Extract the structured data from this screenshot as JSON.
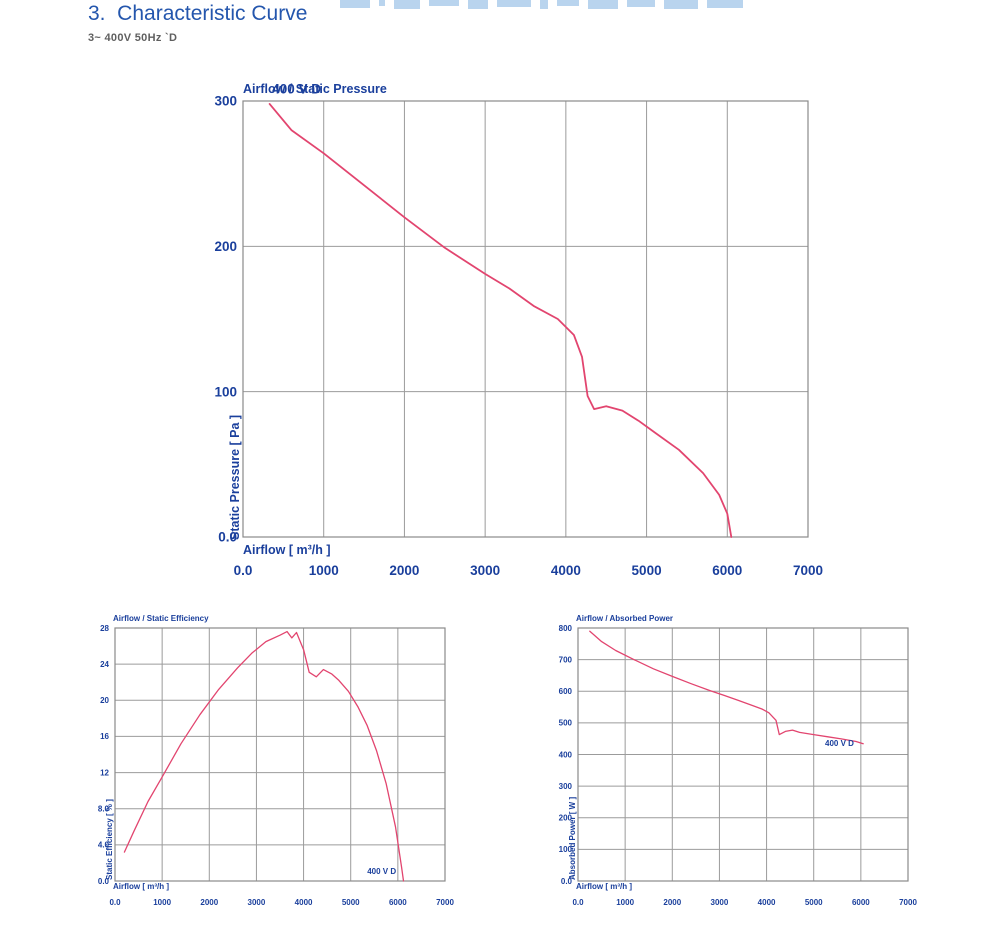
{
  "page": {
    "heading": "3.  Characteristic Curve",
    "subheading": "3~ 400V 50Hz `D"
  },
  "colors": {
    "curve_pink": "#e2456f",
    "text_blue": "#1a3f9c",
    "heading_blue": "#2456ad",
    "grid_gray": "#9b9b9b",
    "border_gray": "#8a8a8a",
    "fragment_blue": "#b9d4ee"
  },
  "chart_data": [
    {
      "id": "static_pressure",
      "type": "line",
      "title": "Airflow / Static Pressure",
      "xlabel": "Airflow [ m³/h ]",
      "ylabel": "Static Pressure [ Pa ]",
      "xlim": [
        0,
        7000
      ],
      "ylim": [
        0,
        300
      ],
      "grid": true,
      "xticks": [
        {
          "v": 0,
          "label": "0.0"
        },
        {
          "v": 1000,
          "label": "1000"
        },
        {
          "v": 2000,
          "label": "2000"
        },
        {
          "v": 3000,
          "label": "3000"
        },
        {
          "v": 4000,
          "label": "4000"
        },
        {
          "v": 5000,
          "label": "5000"
        },
        {
          "v": 6000,
          "label": "6000"
        },
        {
          "v": 7000,
          "label": "7000"
        }
      ],
      "yticks": [
        {
          "v": 0,
          "label": "0.0"
        },
        {
          "v": 100,
          "label": "100"
        },
        {
          "v": 200,
          "label": "200"
        },
        {
          "v": 300,
          "label": "300"
        }
      ],
      "series": {
        "name": "400 V D",
        "label_pos": [
          362,
          305
        ],
        "points": [
          [
            330,
            298
          ],
          [
            600,
            280
          ],
          [
            1000,
            264
          ],
          [
            1500,
            242
          ],
          [
            2000,
            220
          ],
          [
            2500,
            199
          ],
          [
            3000,
            181
          ],
          [
            3300,
            171
          ],
          [
            3600,
            159
          ],
          [
            3900,
            150
          ],
          [
            4100,
            139
          ],
          [
            4200,
            124
          ],
          [
            4270,
            97
          ],
          [
            4350,
            88
          ],
          [
            4500,
            90
          ],
          [
            4700,
            87
          ],
          [
            4900,
            80
          ],
          [
            5100,
            72
          ],
          [
            5400,
            60
          ],
          [
            5700,
            44
          ],
          [
            5900,
            29
          ],
          [
            6000,
            16
          ],
          [
            6050,
            0
          ]
        ]
      }
    },
    {
      "id": "static_efficiency",
      "type": "line",
      "title": "Airflow / Static Efficiency",
      "xlabel": "Airflow [ m³/h ]",
      "ylabel": "Static Efficiency [ % ]",
      "xlim": [
        0,
        7000
      ],
      "ylim": [
        0,
        28
      ],
      "grid": true,
      "xticks": [
        {
          "v": 0,
          "label": "0.0"
        },
        {
          "v": 1000,
          "label": "1000"
        },
        {
          "v": 2000,
          "label": "2000"
        },
        {
          "v": 3000,
          "label": "3000"
        },
        {
          "v": 4000,
          "label": "4000"
        },
        {
          "v": 5000,
          "label": "5000"
        },
        {
          "v": 6000,
          "label": "6000"
        },
        {
          "v": 7000,
          "label": "7000"
        }
      ],
      "yticks": [
        {
          "v": 0,
          "label": "0.0"
        },
        {
          "v": 4,
          "label": "4.0"
        },
        {
          "v": 8,
          "label": "8.0"
        },
        {
          "v": 12,
          "label": "12"
        },
        {
          "v": 16,
          "label": "16"
        },
        {
          "v": 20,
          "label": "20"
        },
        {
          "v": 24,
          "label": "24"
        },
        {
          "v": 28,
          "label": "28"
        }
      ],
      "series": {
        "name": "400 V D",
        "label_pos": [
          5350,
          0.8
        ],
        "points": [
          [
            200,
            3.2
          ],
          [
            400,
            5.5
          ],
          [
            700,
            8.8
          ],
          [
            1000,
            11.5
          ],
          [
            1400,
            15.2
          ],
          [
            1800,
            18.4
          ],
          [
            2200,
            21.2
          ],
          [
            2600,
            23.6
          ],
          [
            2900,
            25.2
          ],
          [
            3200,
            26.5
          ],
          [
            3500,
            27.2
          ],
          [
            3650,
            27.6
          ],
          [
            3750,
            26.9
          ],
          [
            3850,
            27.5
          ],
          [
            4000,
            25.6
          ],
          [
            4120,
            23.1
          ],
          [
            4270,
            22.6
          ],
          [
            4420,
            23.4
          ],
          [
            4600,
            22.9
          ],
          [
            4750,
            22.2
          ],
          [
            4950,
            21.0
          ],
          [
            5150,
            19.3
          ],
          [
            5350,
            17.2
          ],
          [
            5550,
            14.4
          ],
          [
            5750,
            10.8
          ],
          [
            5950,
            6.0
          ],
          [
            6080,
            1.5
          ],
          [
            6120,
            0
          ]
        ]
      }
    },
    {
      "id": "absorbed_power",
      "type": "line",
      "title": "Airflow / Absorbed Power",
      "xlabel": "Airflow [ m³/h ]",
      "ylabel": "Absorbed Power [ W ]",
      "xlim": [
        0,
        7000
      ],
      "ylim": [
        0,
        800
      ],
      "grid": true,
      "xticks": [
        {
          "v": 0,
          "label": "0.0"
        },
        {
          "v": 1000,
          "label": "1000"
        },
        {
          "v": 2000,
          "label": "2000"
        },
        {
          "v": 3000,
          "label": "3000"
        },
        {
          "v": 4000,
          "label": "4000"
        },
        {
          "v": 5000,
          "label": "5000"
        },
        {
          "v": 6000,
          "label": "6000"
        },
        {
          "v": 7000,
          "label": "7000"
        }
      ],
      "yticks": [
        {
          "v": 0,
          "label": "0.0"
        },
        {
          "v": 100,
          "label": "100"
        },
        {
          "v": 200,
          "label": "200"
        },
        {
          "v": 300,
          "label": "300"
        },
        {
          "v": 400,
          "label": "400"
        },
        {
          "v": 500,
          "label": "500"
        },
        {
          "v": 600,
          "label": "600"
        },
        {
          "v": 700,
          "label": "700"
        },
        {
          "v": 800,
          "label": "800"
        }
      ],
      "series": {
        "name": "400 V D",
        "label_pos": [
          5240,
          427
        ],
        "points": [
          [
            250,
            790
          ],
          [
            500,
            757
          ],
          [
            800,
            729
          ],
          [
            1200,
            699
          ],
          [
            1600,
            671
          ],
          [
            2000,
            647
          ],
          [
            2400,
            624
          ],
          [
            2800,
            602
          ],
          [
            3100,
            587
          ],
          [
            3400,
            571
          ],
          [
            3700,
            555
          ],
          [
            3900,
            544
          ],
          [
            4050,
            532
          ],
          [
            4200,
            508
          ],
          [
            4270,
            463
          ],
          [
            4400,
            473
          ],
          [
            4550,
            477
          ],
          [
            4700,
            470
          ],
          [
            5000,
            463
          ],
          [
            5300,
            456
          ],
          [
            5600,
            449
          ],
          [
            5900,
            441
          ],
          [
            6050,
            434
          ]
        ]
      }
    }
  ]
}
